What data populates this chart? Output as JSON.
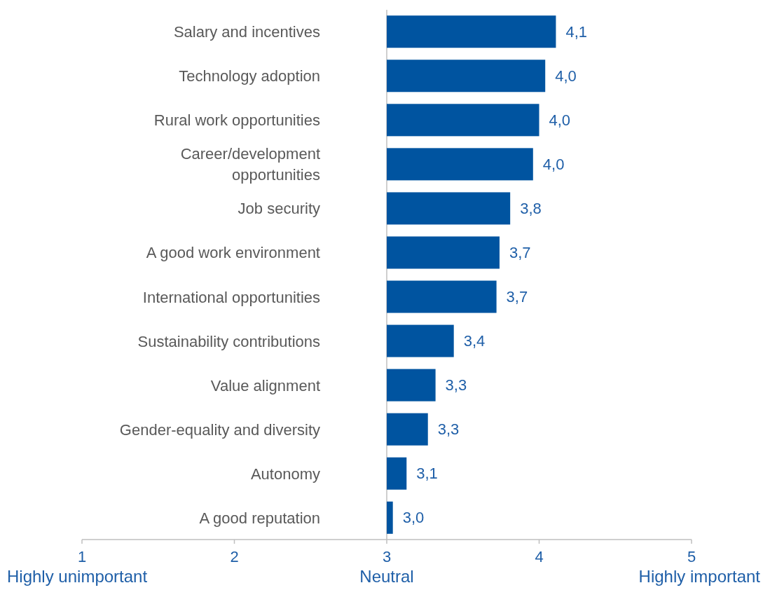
{
  "chart_data": {
    "type": "bar",
    "orientation": "horizontal",
    "categories": [
      "Salary and incentives",
      "Technology adoption",
      "Rural work opportunities",
      "Career/development opportunities",
      "Job security",
      "A good work environment",
      "International opportunities",
      "Sustainability contributions",
      "Value alignment",
      "Gender-equality and diversity",
      "Autonomy",
      "A good reputation"
    ],
    "base": [
      3,
      3,
      3,
      3,
      3,
      3,
      3,
      3,
      3,
      3,
      3,
      3
    ],
    "values": [
      1.11,
      1.04,
      1.0,
      0.96,
      0.81,
      0.74,
      0.72,
      0.44,
      0.32,
      0.27,
      0.13,
      0.04
    ],
    "value_labels": [
      "4,1",
      "4,0",
      "4,0",
      "4,0",
      "3,8",
      "3,7",
      "3,7",
      "3,4",
      "3,3",
      "3,3",
      "3,1",
      "3,0"
    ],
    "color": "#0054a0",
    "xlim": [
      1,
      5
    ],
    "xticks": [
      {
        "value": 1,
        "label": "1\nHighly unimportant"
      },
      {
        "value": 2,
        "label": "2"
      },
      {
        "value": 3,
        "label": "3\nNeutral"
      },
      {
        "value": 4,
        "label": "4"
      },
      {
        "value": 5,
        "label": "5\nHighly important"
      }
    ],
    "grid": "x"
  }
}
